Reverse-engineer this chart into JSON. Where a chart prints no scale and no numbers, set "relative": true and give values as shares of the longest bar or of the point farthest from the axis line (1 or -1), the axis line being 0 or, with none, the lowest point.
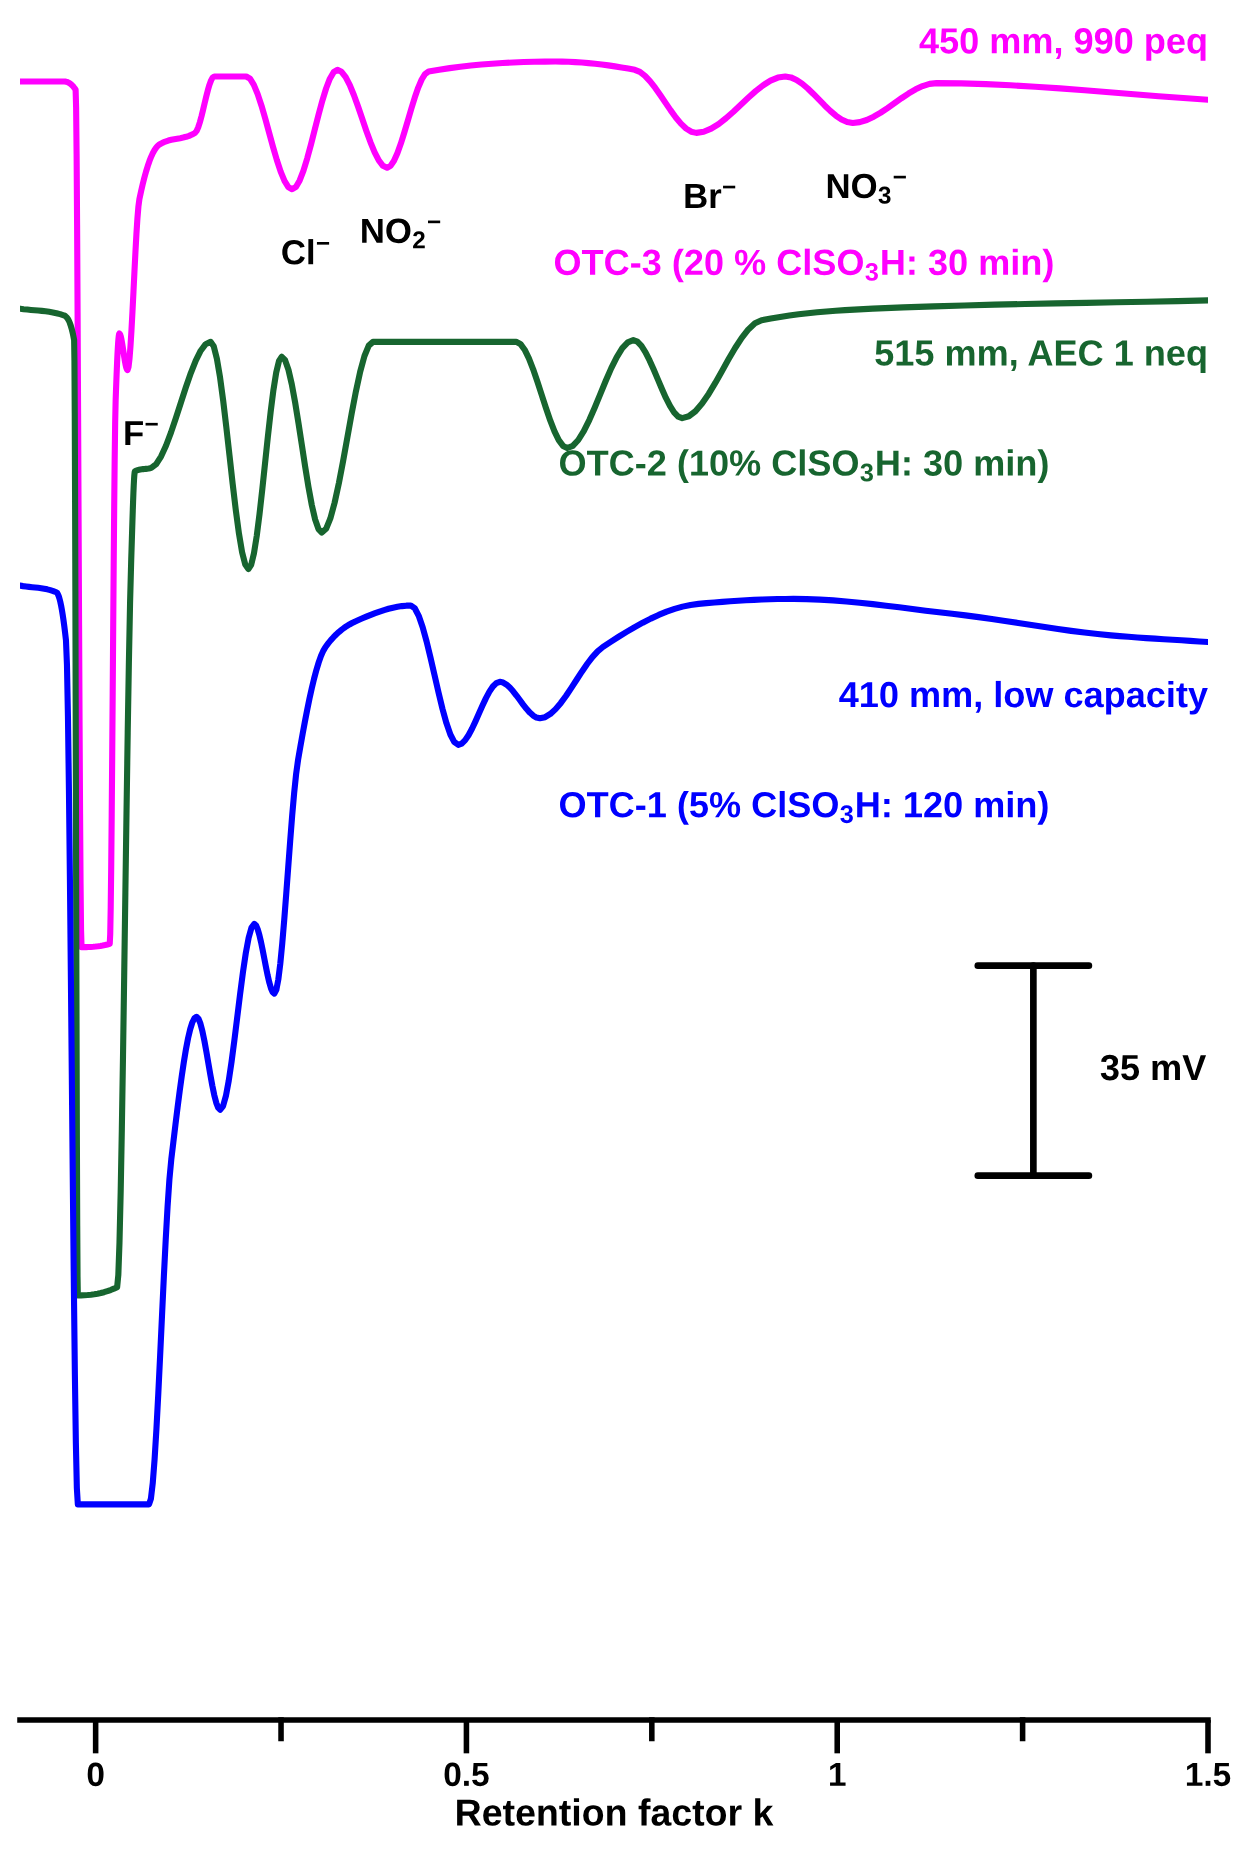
{
  "chart_data": {
    "type": "line",
    "relative": true,
    "xlabel": "Retention factor k",
    "xlim": [
      -0.102,
      1.5
    ],
    "xticks": [
      0,
      {
        "value": 0.25,
        "label": null
      },
      0.5,
      {
        "value": 0.75,
        "label": null
      },
      1,
      {
        "value": 1.25,
        "label": null
      },
      1.5
    ],
    "tick_labels": "x",
    "grid": false,
    "legend": false,
    "line_style": "solid",
    "series": [
      {
        "name": "OTC-3 (20 % ClSO$_{3}$H: 30 min)",
        "color": "#ff00ff",
        "x": [
          -0.102,
          -0.043,
          -0.027,
          -0.019,
          0.019,
          0.027,
          0.032,
          0.043,
          0.059,
          0.086,
          0.134,
          0.16,
          0.203,
          0.265,
          0.326,
          0.393,
          0.449,
          0.62,
          0.727,
          0.81,
          0.93,
          1.021,
          1.134,
          1.5
        ],
        "values": [
          0.988,
          0.988,
          0.983,
          0.466,
          0.468,
          0.796,
          0.836,
          0.814,
          0.917,
          0.95,
          0.957,
          0.991,
          0.991,
          0.923,
          0.995,
          0.936,
          0.994,
          1.0,
          0.995,
          0.957,
          0.991,
          0.963,
          0.987,
          0.977
        ]
      },
      {
        "name": "OTC-2 (10% ClSO$_{3}$H: 30 min)",
        "color": "#17652f",
        "x": [
          -0.102,
          -0.043,
          -0.029,
          -0.024,
          0.029,
          0.048,
          0.053,
          0.075,
          0.155,
          0.206,
          0.251,
          0.305,
          0.374,
          0.567,
          0.636,
          0.725,
          0.791,
          0.898,
          1.048,
          1.5
        ],
        "values": [
          0.851,
          0.847,
          0.832,
          0.256,
          0.261,
          0.7,
          0.753,
          0.755,
          0.831,
          0.694,
          0.822,
          0.716,
          0.831,
          0.831,
          0.767,
          0.832,
          0.785,
          0.844,
          0.851,
          0.856
        ]
      },
      {
        "name": "OTC-1 (5% ClSO$_{3}$H: 120 min)",
        "color": "#0000ff",
        "x": [
          -0.102,
          -0.053,
          -0.04,
          -0.024,
          0.072,
          0.102,
          0.136,
          0.168,
          0.214,
          0.241,
          0.273,
          0.31,
          0.353,
          0.425,
          0.489,
          0.545,
          0.599,
          0.684,
          0.813,
          0.941,
          1.155,
          1.369,
          1.5
        ],
        "values": [
          0.684,
          0.68,
          0.651,
          0.13,
          0.13,
          0.338,
          0.424,
          0.368,
          0.48,
          0.438,
          0.579,
          0.647,
          0.663,
          0.672,
          0.588,
          0.626,
          0.604,
          0.647,
          0.673,
          0.676,
          0.667,
          0.654,
          0.65
        ]
      }
    ],
    "annotations": [
      "450 mm, 990 peq",
      "515 mm, AEC 1 neq",
      "410 mm, low capacity",
      "35 mV",
      {
        "text": "Cl$^{−}$",
        "x": 0.265,
        "y": 0.923
      },
      {
        "text": "NO$_{2}$$^{−}$",
        "x": 0.393,
        "y": 0.936
      },
      {
        "text": "Br$^{−}$",
        "x": 0.81,
        "y": 0.957
      },
      {
        "text": "NO$_{3}$$^{−}$",
        "x": 1.021,
        "y": 0.963
      },
      {
        "text": "F$^{−}$",
        "x": 0.043,
        "y": 0.814
      }
    ]
  }
}
